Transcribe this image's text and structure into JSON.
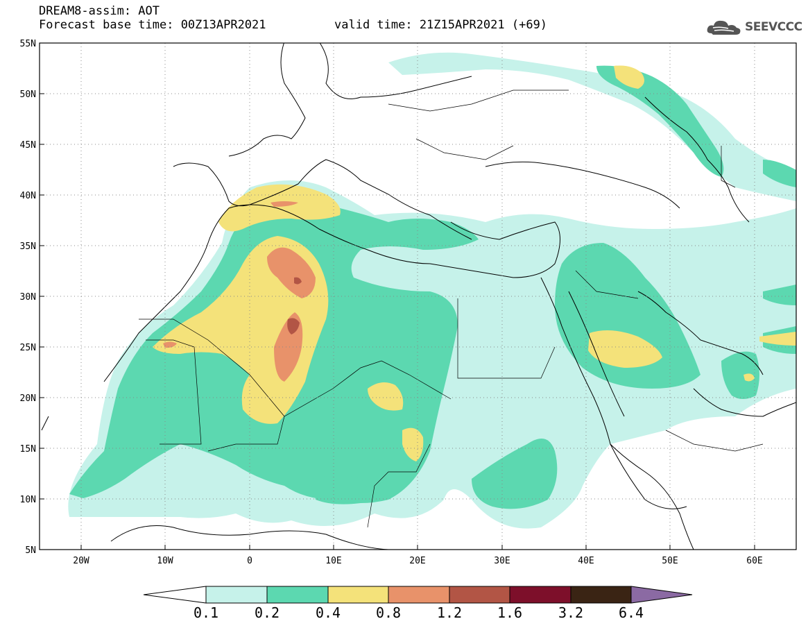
{
  "header": {
    "title": "DREAM8-assim: AOT",
    "base_time": "Forecast base time: 00Z13APR2021",
    "valid_time": "valid time: 21Z15APR2021 (+69)"
  },
  "logo": {
    "text": "SEEVCCC",
    "icon": "cloud-icon"
  },
  "map": {
    "lat_labels": [
      "55N",
      "50N",
      "45N",
      "40N",
      "35N",
      "30N",
      "25N",
      "20N",
      "15N",
      "10N",
      "5N"
    ],
    "lon_labels": [
      "20W",
      "10W",
      "0",
      "10E",
      "20E",
      "30E",
      "40E",
      "50E",
      "60E"
    ],
    "lat_range": [
      5,
      55
    ],
    "lon_range": [
      -25,
      65
    ],
    "grid": "dotted"
  },
  "colorbar": {
    "labels": [
      "0.1",
      "0.2",
      "0.4",
      "0.8",
      "1.2",
      "1.6",
      "3.2",
      "6.4"
    ],
    "colors": [
      "#ffffff",
      "#c6f2ea",
      "#5cd8b0",
      "#f4e27a",
      "#e8926a",
      "#b25545",
      "#7d0f2a",
      "#3a2414",
      "#8b6aa3"
    ]
  }
}
